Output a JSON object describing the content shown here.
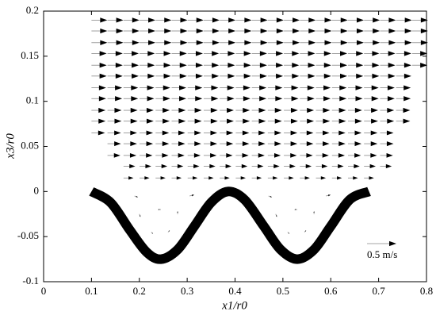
{
  "chart_data": {
    "type": "quiver",
    "xlabel": "x1/r0",
    "ylabel": "x3/r0",
    "xlim": [
      0,
      0.8
    ],
    "ylim": [
      -0.1,
      0.2
    ],
    "xticks": [
      0,
      0.1,
      0.2,
      0.3,
      0.4,
      0.5,
      0.6,
      0.7,
      0.8
    ],
    "yticks": [
      -0.1,
      -0.05,
      0,
      0.05,
      0.1,
      0.15,
      0.2
    ],
    "columns": [
      0.1,
      0.1335,
      0.167,
      0.2005,
      0.234,
      0.2675,
      0.301,
      0.3345,
      0.368,
      0.4015,
      0.435,
      0.4685,
      0.502,
      0.5355,
      0.569,
      0.6025,
      0.636,
      0.6695,
      0.703,
      0.7365,
      0.77
    ],
    "rows": [
      {
        "y": 0.19,
        "u": 0.27,
        "first": 0,
        "last": 20
      },
      {
        "y": 0.178,
        "u": 0.27,
        "first": 0,
        "last": 20
      },
      {
        "y": 0.165,
        "u": 0.27,
        "first": 0,
        "last": 20
      },
      {
        "y": 0.153,
        "u": 0.26,
        "first": 0,
        "last": 20
      },
      {
        "y": 0.14,
        "u": 0.26,
        "first": 0,
        "last": 20
      },
      {
        "y": 0.128,
        "u": 0.26,
        "first": 0,
        "last": 19
      },
      {
        "y": 0.115,
        "u": 0.25,
        "first": 0,
        "last": 19
      },
      {
        "y": 0.103,
        "u": 0.25,
        "first": 0,
        "last": 19
      },
      {
        "y": 0.09,
        "u": 0.24,
        "first": 0,
        "last": 19
      },
      {
        "y": 0.078,
        "u": 0.24,
        "first": 0,
        "last": 19
      },
      {
        "y": 0.065,
        "u": 0.23,
        "first": 0,
        "last": 18
      },
      {
        "y": 0.053,
        "u": 0.23,
        "first": 1,
        "last": 18
      },
      {
        "y": 0.04,
        "u": 0.22,
        "first": 1,
        "last": 18
      },
      {
        "y": 0.028,
        "u": 0.2,
        "first": 2,
        "last": 18
      },
      {
        "y": 0.015,
        "u": 0.17,
        "first": 2,
        "last": 17
      }
    ],
    "points": [
      {
        "x": 0.19,
        "y": -0.005,
        "u": 0.06,
        "v": -0.02
      },
      {
        "x": 0.2,
        "y": -0.025,
        "u": 0.02,
        "v": -0.05
      },
      {
        "x": 0.225,
        "y": -0.045,
        "u": 0.03,
        "v": -0.03
      },
      {
        "x": 0.26,
        "y": -0.045,
        "u": 0.03,
        "v": 0.03
      },
      {
        "x": 0.28,
        "y": -0.025,
        "u": 0.0,
        "v": 0.05
      },
      {
        "x": 0.245,
        "y": -0.02,
        "u": -0.05,
        "v": 0.0
      },
      {
        "x": 0.305,
        "y": -0.005,
        "u": 0.08,
        "v": 0.02
      },
      {
        "x": 0.47,
        "y": -0.005,
        "u": 0.06,
        "v": -0.02
      },
      {
        "x": 0.485,
        "y": -0.025,
        "u": 0.02,
        "v": -0.05
      },
      {
        "x": 0.51,
        "y": -0.045,
        "u": 0.03,
        "v": -0.03
      },
      {
        "x": 0.545,
        "y": -0.045,
        "u": 0.03,
        "v": 0.03
      },
      {
        "x": 0.565,
        "y": -0.025,
        "u": 0.0,
        "v": 0.05
      },
      {
        "x": 0.53,
        "y": -0.02,
        "u": -0.05,
        "v": 0.0
      },
      {
        "x": 0.59,
        "y": -0.005,
        "u": 0.08,
        "v": 0.02
      }
    ],
    "wall_x": [
      0.1,
      0.14,
      0.18,
      0.215,
      0.245,
      0.28,
      0.315,
      0.35,
      0.385,
      0.42,
      0.46,
      0.495,
      0.53,
      0.565,
      0.6,
      0.64,
      0.68
    ],
    "wall_y": [
      0,
      -0.0122,
      -0.0426,
      -0.0671,
      -0.075,
      -0.0644,
      -0.0385,
      -0.0122,
      0,
      -0.0091,
      -0.0384,
      -0.0643,
      -0.075,
      -0.0644,
      -0.0385,
      -0.0089,
      0
    ],
    "key": {
      "value": 0.5,
      "label": "0.5 m/s"
    }
  }
}
